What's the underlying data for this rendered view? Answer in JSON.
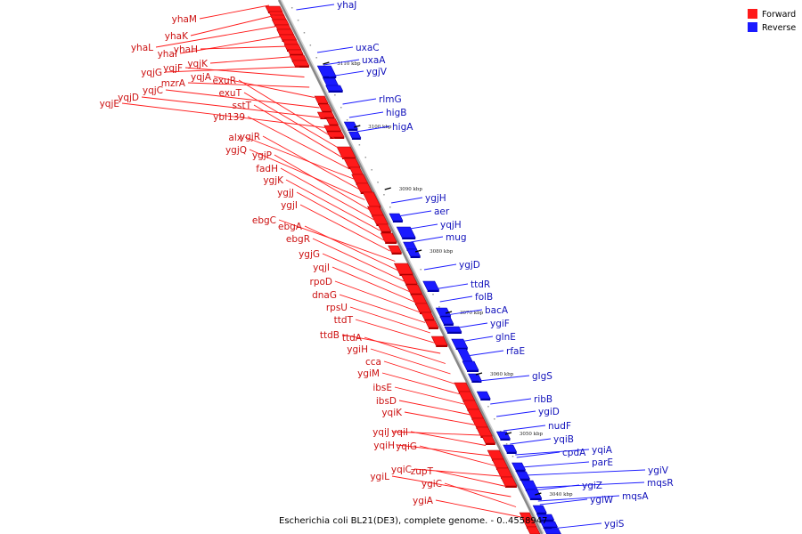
{
  "caption": "Escherichia coli BL21(DE3), complete genome. - 0..4558947",
  "legend": {
    "items": [
      {
        "label": "Forward",
        "color": "#ff1a1a"
      },
      {
        "label": "Reverse",
        "color": "#1a1aff"
      }
    ]
  },
  "colors": {
    "forward": "#ff1a1a",
    "forward_dark": "#b00000",
    "reverse": "#1a1aff",
    "reverse_dark": "#0000a8",
    "backbone": "#888888"
  },
  "ticks": [
    "3110 kbp",
    "3100 kbp",
    "3090 kbp",
    "3080 kbp",
    "3070 kbp",
    "3060 kbp",
    "3050 kbp",
    "3040 kbp"
  ],
  "forward_labels": [
    "yhaM",
    "yhaK",
    "yhaL",
    "yhaI",
    "yhaH",
    "yqjK",
    "yqjG",
    "yqjF",
    "mzrA",
    "yqjA",
    "yqjC",
    "yqjD",
    "yqjE",
    "exuR",
    "exuT",
    "sstT",
    "ybl139",
    "alx",
    "ygjR",
    "ygjQ",
    "ygjP",
    "fadH",
    "ygjK",
    "ygjJ",
    "ygjI",
    "ebgC",
    "ebgA",
    "ebgR",
    "ygjG",
    "yqjI",
    "rpoD",
    "dnaG",
    "rpsU",
    "ttdT",
    "ttdB",
    "ttdA",
    "ygiH",
    "cca",
    "ygiM",
    "ibsE",
    "ibsD",
    "yqiK",
    "yqiJ",
    "yqiI",
    "yqiH",
    "yqiG",
    "yqiC",
    "zupT",
    "ygiL",
    "ygiC",
    "ygiA"
  ],
  "reverse_labels": [
    "yhaJ",
    "uxaC",
    "uxaA",
    "ygjV",
    "rlmG",
    "higB",
    "higA",
    "ygjH",
    "aer",
    "yqjH",
    "mug",
    "ygjD",
    "ttdR",
    "folB",
    "bacA",
    "ygiF",
    "glnE",
    "rfaE",
    "glgS",
    "ribB",
    "ygiD",
    "nudF",
    "yqiB",
    "cpdA",
    "yqiA",
    "parE",
    "ygiZ",
    "ygiV",
    "mqsR",
    "ygiW",
    "mqsA",
    "ygiS"
  ]
}
